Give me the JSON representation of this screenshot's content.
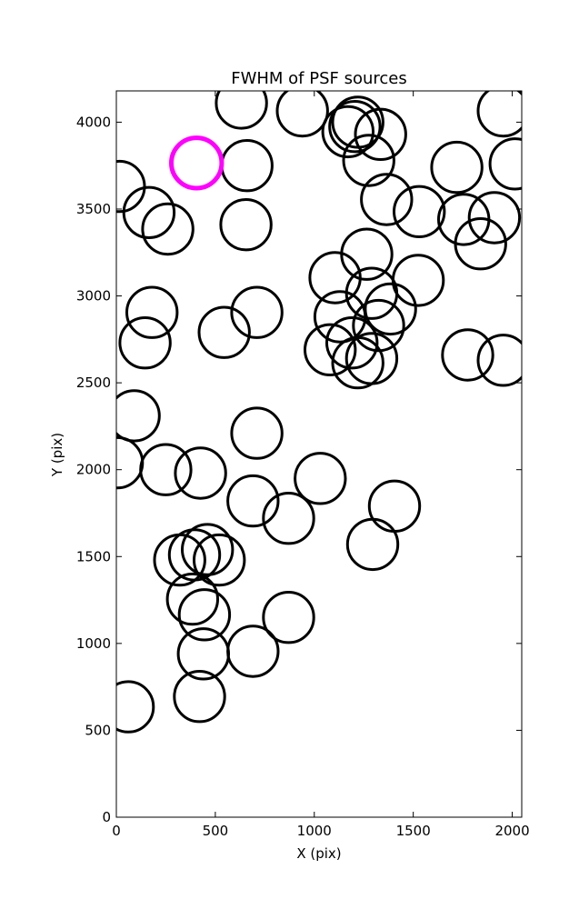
{
  "chart_data": {
    "type": "scatter",
    "title": "FWHM of PSF sources",
    "xlabel": "X (pix)",
    "ylabel": "Y (pix)",
    "xlim": [
      0,
      2048
    ],
    "ylim": [
      0,
      4180
    ],
    "xticks": [
      0,
      500,
      1000,
      1500,
      2000
    ],
    "yticks": [
      0,
      500,
      1000,
      1500,
      2000,
      2500,
      3000,
      3500,
      4000
    ],
    "grid": false,
    "marker_radius": 145,
    "series": [
      {
        "points": [
          [
            632,
            4110
          ],
          [
            940,
            4065
          ],
          [
            1955,
            4065
          ],
          [
            1220,
            4000
          ],
          [
            1205,
            3975
          ],
          [
            1170,
            3945
          ],
          [
            1335,
            3930
          ],
          [
            15,
            3630
          ],
          [
            660,
            3750
          ],
          [
            1275,
            3780
          ],
          [
            1720,
            3740
          ],
          [
            2015,
            3760
          ],
          [
            165,
            3480
          ],
          [
            260,
            3385
          ],
          [
            655,
            3410
          ],
          [
            1365,
            3555
          ],
          [
            1530,
            3485
          ],
          [
            1755,
            3440
          ],
          [
            1910,
            3450
          ],
          [
            1840,
            3300
          ],
          [
            1265,
            3240
          ],
          [
            1105,
            3105
          ],
          [
            1525,
            3090
          ],
          [
            180,
            2905
          ],
          [
            710,
            2905
          ],
          [
            1290,
            3015
          ],
          [
            1385,
            2925
          ],
          [
            1130,
            2880
          ],
          [
            1325,
            2830
          ],
          [
            145,
            2730
          ],
          [
            545,
            2790
          ],
          [
            1080,
            2690
          ],
          [
            1190,
            2730
          ],
          [
            1220,
            2615
          ],
          [
            1290,
            2640
          ],
          [
            1775,
            2660
          ],
          [
            1955,
            2630
          ],
          [
            90,
            2310
          ],
          [
            710,
            2210
          ],
          [
            5,
            2040
          ],
          [
            250,
            2000
          ],
          [
            425,
            1980
          ],
          [
            1030,
            1950
          ],
          [
            690,
            1820
          ],
          [
            870,
            1720
          ],
          [
            1405,
            1790
          ],
          [
            1295,
            1570
          ],
          [
            320,
            1480
          ],
          [
            395,
            1510
          ],
          [
            460,
            1540
          ],
          [
            520,
            1480
          ],
          [
            385,
            1255
          ],
          [
            445,
            1165
          ],
          [
            870,
            1150
          ],
          [
            440,
            940
          ],
          [
            690,
            955
          ],
          [
            420,
            695
          ],
          [
            60,
            635
          ]
        ]
      },
      {
        "highlight": true,
        "color": "#ff00ff",
        "points": [
          [
            405,
            3765
          ]
        ]
      }
    ]
  }
}
